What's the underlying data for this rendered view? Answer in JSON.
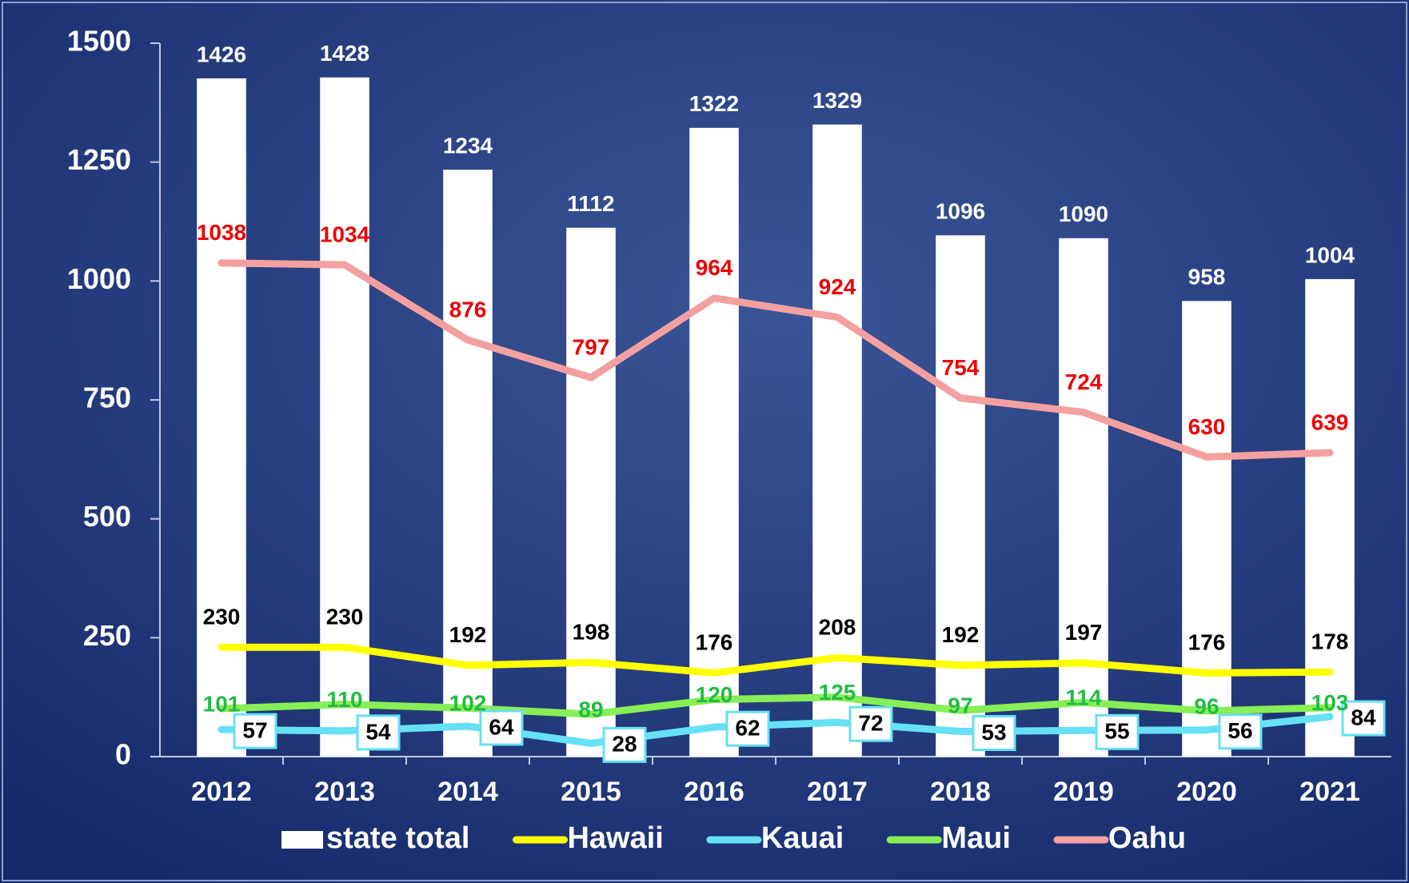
{
  "chart_data": {
    "type": "combo",
    "categories": [
      "2012",
      "2013",
      "2014",
      "2015",
      "2016",
      "2017",
      "2018",
      "2019",
      "2020",
      "2021"
    ],
    "series": [
      {
        "name": "state total",
        "type": "bar",
        "color": "#ffffff",
        "label_color": "#ffffff",
        "values": [
          1426,
          1428,
          1234,
          1112,
          1322,
          1329,
          1096,
          1090,
          958,
          1004
        ]
      },
      {
        "name": "Hawaii",
        "type": "line",
        "color": "#ffff00",
        "label_color": "#000000",
        "values": [
          230,
          230,
          192,
          198,
          176,
          208,
          192,
          197,
          176,
          178
        ]
      },
      {
        "name": "Kauai",
        "type": "line",
        "color": "#66e0f5",
        "label_color": "#000000",
        "values": [
          57,
          54,
          64,
          28,
          62,
          72,
          53,
          55,
          56,
          84
        ]
      },
      {
        "name": "Maui",
        "type": "line",
        "color": "#88ee55",
        "label_color": "#22bb44",
        "values": [
          101,
          110,
          102,
          89,
          120,
          125,
          97,
          114,
          96,
          103
        ]
      },
      {
        "name": "Oahu",
        "type": "line",
        "color": "#f4a0a0",
        "label_color": "#ee0000",
        "values": [
          1038,
          1034,
          876,
          797,
          964,
          924,
          754,
          724,
          630,
          639
        ]
      }
    ],
    "ylim": [
      0,
      1500
    ],
    "yticks": [
      0,
      250,
      500,
      750,
      1000,
      1250,
      1500
    ],
    "legend": "bottom"
  }
}
